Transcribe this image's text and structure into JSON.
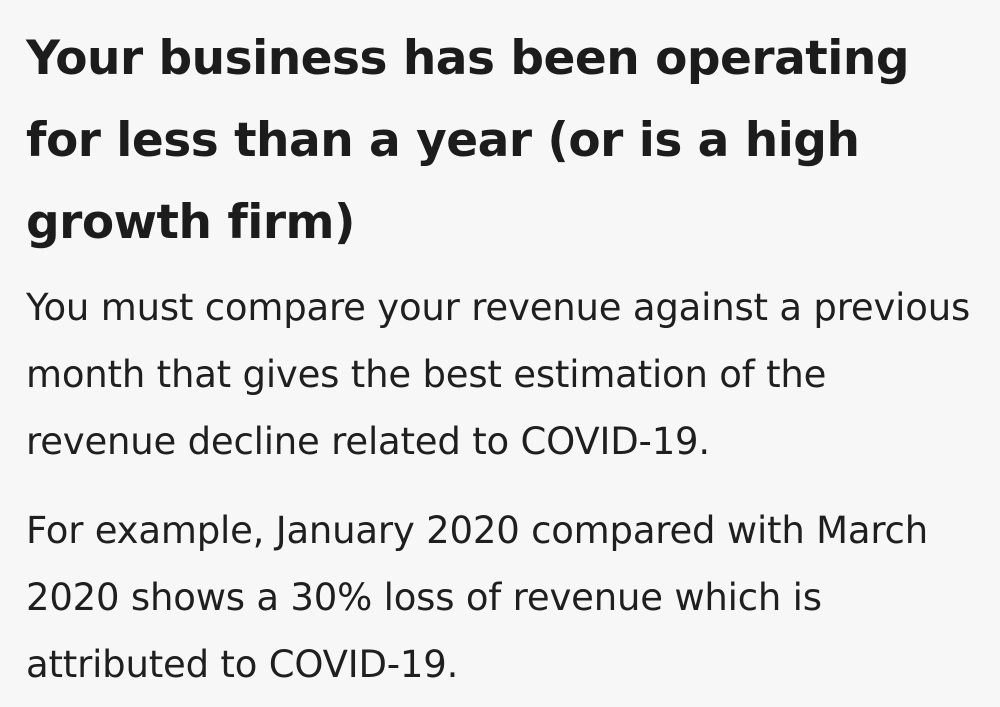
{
  "heading": "Your business has been operating for less than a year (or is a high growth firm)",
  "paragraphs": [
    "You must compare your revenue against a previous month that gives the best estimation of the revenue decline related to COVID-19.",
    "For example, January 2020 compared with March 2020 shows a 30% loss of revenue which is attributed to COVID-19."
  ]
}
